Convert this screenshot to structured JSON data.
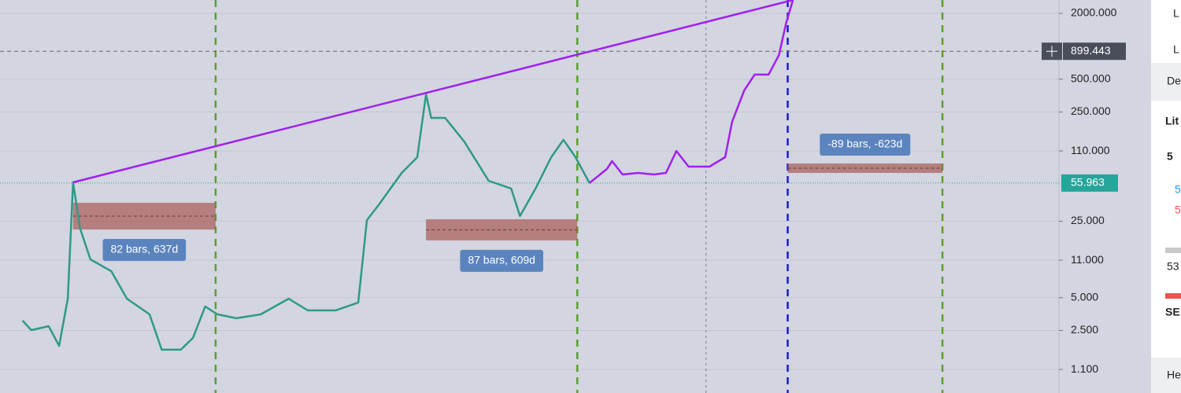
{
  "chart_data": {
    "type": "line",
    "log_scale": true,
    "background": "#d3d5e0",
    "grid": true,
    "xlim": [
      -42,
      567
    ],
    "ylim": [
      0.67,
      2650
    ],
    "yticks": [
      {
        "value": 2000,
        "label": "2000.000"
      },
      {
        "value": 500,
        "label": "500.000"
      },
      {
        "value": 250,
        "label": "250.000"
      },
      {
        "value": 110,
        "label": "110.000"
      },
      {
        "value": 25,
        "label": "25.000"
      },
      {
        "value": 11,
        "label": "11.000"
      },
      {
        "value": 5,
        "label": "5.000"
      },
      {
        "value": 2.5,
        "label": "2.500"
      },
      {
        "value": 1.1,
        "label": "1.100"
      }
    ],
    "series": [
      {
        "color": "#2f9a86",
        "x": [
          -29,
          -24,
          -14,
          -8,
          -3,
          0,
          4,
          10,
          22,
          31,
          44,
          51,
          62,
          69,
          76,
          83,
          94,
          108,
          124,
          135,
          151,
          164,
          169,
          176,
          189,
          198,
          203,
          206,
          214,
          225,
          239,
          252,
          257,
          266,
          275,
          282,
          289,
          297
        ],
        "values": [
          3.08,
          2.52,
          2.74,
          1.81,
          4.89,
          56.8,
          21.7,
          11.2,
          8.73,
          4.89,
          3.52,
          1.67,
          1.67,
          2.14,
          4.15,
          3.52,
          3.24,
          3.52,
          4.89,
          3.82,
          3.82,
          4.51,
          25.6,
          35.7,
          69.3,
          96.4,
          363,
          221,
          221,
          134,
          58.7,
          49.8,
          27.9,
          49.8,
          96.4,
          139,
          96.4,
          55.963
        ]
      },
      {
        "color": "#a020f0",
        "x": [
          297,
          307,
          310,
          316,
          325,
          334,
          341,
          347,
          354,
          366,
          375,
          379,
          386,
          392,
          400,
          406,
          410,
          414
        ],
        "values": [
          55.963,
          75.3,
          88.8,
          67.0,
          69.3,
          67.0,
          69.3,
          110,
          79.1,
          79.1,
          96.4,
          203,
          395,
          550,
          550,
          832,
          1611,
          2650
        ]
      },
      {
        "color": "#a020f0",
        "x": [
          0,
          414
        ],
        "values": [
          56.8,
          2650
        ]
      }
    ],
    "vlines": [
      {
        "x": 82,
        "color": "#5aa02c"
      },
      {
        "x": 290,
        "color": "#5aa02c"
      },
      {
        "x": 364,
        "color": "#777a85"
      },
      {
        "x": 411,
        "color": "#1a1adc"
      },
      {
        "x": 500,
        "color": "#5aa02c"
      }
    ],
    "ranges": [
      {
        "x": [
          0,
          82
        ],
        "y": [
          21.0,
          36.9
        ],
        "label": "82 bars, 637d",
        "label_position": "below"
      },
      {
        "x": [
          203,
          290
        ],
        "y": [
          16.7,
          26.1
        ],
        "label": "87 bars, 609d",
        "label_position": "below"
      },
      {
        "x": [
          411,
          500
        ],
        "y": [
          69.3,
          84.5
        ],
        "label": "-89 bars, -623d",
        "label_position": "above"
      }
    ],
    "crosshair_price": 899.443,
    "last_price": 55.963
  },
  "side_panel": {
    "items": [
      "L",
      "L",
      "De",
      "Lit",
      "5",
      "5",
      "5",
      "53",
      "SE",
      "He"
    ]
  }
}
